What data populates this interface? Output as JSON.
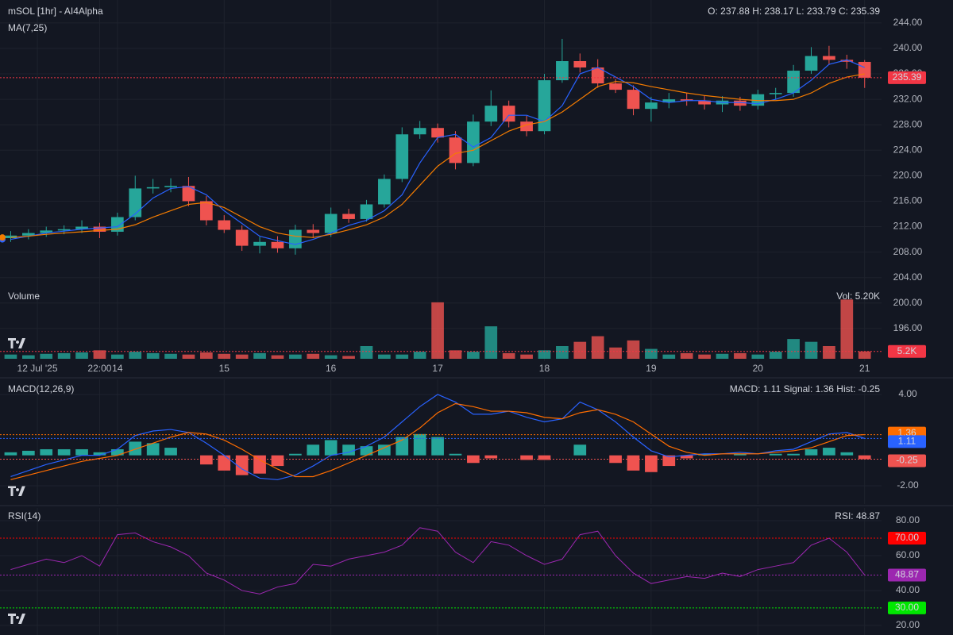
{
  "chart_data": [
    {
      "type": "candlestick",
      "title": "mSOL [1hr] - AI4Alpha",
      "subtitle": "MA(7,25)",
      "readout": "O: 237.88 H: 238.17 L: 233.79 C: 235.39",
      "x": [
        24,
        28,
        32,
        36,
        40,
        44,
        48,
        52,
        56,
        60,
        64,
        68,
        72,
        76,
        80,
        84,
        88,
        92,
        96,
        100,
        104,
        108,
        112,
        116,
        120,
        124,
        128,
        132,
        136,
        140,
        144,
        148,
        152,
        156,
        160,
        164,
        168,
        172,
        176,
        180,
        184,
        188,
        192,
        196,
        200,
        204,
        208,
        212,
        216
      ],
      "xlim": [
        21.6,
        219.8
      ],
      "xticks": [
        {
          "value": 30,
          "label": "12 Jul '25"
        },
        {
          "value": 44,
          "label": "22:00"
        },
        {
          "value": 48,
          "label": "14"
        },
        {
          "value": 72,
          "label": "15"
        },
        {
          "value": 96,
          "label": "16"
        },
        {
          "value": 120,
          "label": "17"
        },
        {
          "value": 144,
          "label": "18"
        },
        {
          "value": 168,
          "label": "19"
        },
        {
          "value": 192,
          "label": "20"
        },
        {
          "value": 216,
          "label": "21"
        }
      ],
      "ylim": [
        190.5,
        247.6
      ],
      "yticks": [
        {
          "value": 196,
          "label": "196.00"
        },
        {
          "value": 200,
          "label": "200.00"
        },
        {
          "value": 204,
          "label": "204.00"
        },
        {
          "value": 208,
          "label": "208.00"
        },
        {
          "value": 212,
          "label": "212.00"
        },
        {
          "value": 216,
          "label": "216.00"
        },
        {
          "value": 220,
          "label": "220.00"
        },
        {
          "value": 224,
          "label": "224.00"
        },
        {
          "value": 228,
          "label": "228.00"
        },
        {
          "value": 232,
          "label": "232.00"
        },
        {
          "value": 236,
          "label": "236.00"
        },
        {
          "value": 240,
          "label": "240.00"
        },
        {
          "value": 244,
          "label": "244.00"
        }
      ],
      "grid": true,
      "up_color": "#26a69a",
      "down_color": "#ef5350",
      "last_color": "#f23645",
      "open": [
        210.2,
        210.6,
        211.0,
        211.4,
        211.6,
        212.0,
        211.2,
        213.5,
        218.0,
        218.2,
        218.4,
        216.0,
        213.0,
        211.5,
        209.0,
        209.6,
        208.6,
        211.5,
        211.0,
        214.0,
        213.2,
        215.5,
        219.5,
        226.5,
        227.5,
        226.0,
        222.0,
        228.5,
        231.0,
        228.5,
        227.0,
        235.0,
        238.0,
        237.0,
        234.5,
        233.5,
        230.5,
        231.5,
        232.0,
        231.8,
        231.2,
        231.8,
        231.0,
        232.8,
        233.0,
        236.5,
        238.8,
        238.2,
        237.88
      ],
      "high": [
        211.3,
        211.6,
        212.0,
        212.2,
        213.0,
        212.6,
        214.2,
        220.0,
        219.5,
        219.6,
        219.8,
        216.8,
        213.8,
        212.2,
        210.4,
        210.5,
        212.3,
        212.4,
        215.0,
        214.8,
        216.2,
        220.2,
        227.6,
        228.6,
        228.2,
        227.0,
        229.6,
        233.4,
        231.8,
        229.4,
        236.0,
        241.5,
        239.2,
        238.3,
        235.2,
        234.2,
        232.4,
        233.0,
        233.0,
        232.6,
        232.5,
        232.4,
        233.5,
        233.8,
        237.4,
        240.2,
        240.4,
        239.0,
        238.17
      ],
      "low": [
        209.6,
        210.0,
        210.4,
        210.8,
        211.0,
        210.2,
        210.6,
        213.0,
        217.2,
        217.4,
        215.2,
        212.2,
        211.0,
        208.2,
        207.8,
        207.9,
        207.6,
        210.2,
        210.4,
        212.6,
        212.8,
        215.0,
        219.0,
        225.8,
        225.2,
        221.0,
        221.5,
        227.8,
        227.6,
        226.2,
        226.5,
        234.6,
        236.2,
        233.8,
        233.0,
        229.5,
        228.5,
        230.6,
        231.0,
        230.4,
        230.0,
        230.2,
        230.4,
        232.0,
        232.4,
        236.0,
        237.4,
        236.8,
        233.79
      ],
      "close": [
        210.6,
        211.0,
        211.4,
        211.6,
        212.0,
        211.2,
        213.5,
        218.0,
        218.2,
        218.4,
        216.0,
        213.0,
        211.5,
        209.0,
        209.6,
        208.6,
        211.5,
        211.0,
        214.0,
        213.2,
        215.5,
        219.5,
        226.5,
        227.5,
        226.0,
        222.0,
        228.5,
        231.0,
        228.5,
        227.0,
        235.0,
        238.0,
        237.0,
        234.5,
        233.5,
        230.5,
        231.5,
        232.0,
        231.8,
        231.2,
        231.8,
        231.0,
        232.8,
        233.0,
        236.5,
        238.8,
        238.2,
        237.9,
        235.39
      ],
      "ma": [
        {
          "color": "#2962ff",
          "values": [
            210.0,
            210.5,
            211.0,
            211.3,
            211.6,
            211.8,
            212.0,
            214.0,
            216.5,
            218.0,
            218.3,
            217.0,
            214.5,
            212.5,
            210.5,
            209.8,
            209.2,
            210.0,
            211.0,
            212.2,
            213.0,
            214.5,
            217.0,
            222.0,
            226.0,
            226.5,
            224.5,
            226.0,
            229.5,
            229.5,
            228.5,
            231.0,
            236.0,
            237.0,
            235.5,
            234.0,
            232.0,
            231.5,
            231.8,
            231.8,
            231.5,
            231.5,
            231.3,
            232.0,
            233.0,
            235.0,
            237.5,
            238.2,
            237.0
          ]
        },
        {
          "color": "#f57c00",
          "values": [
            210.3,
            210.5,
            210.8,
            211.0,
            211.2,
            211.4,
            211.6,
            212.3,
            213.5,
            214.5,
            215.5,
            215.8,
            215.0,
            213.5,
            212.0,
            211.0,
            210.5,
            210.3,
            210.8,
            211.5,
            212.3,
            213.5,
            215.5,
            218.5,
            221.5,
            223.5,
            224.0,
            225.5,
            227.0,
            228.0,
            228.5,
            230.0,
            232.0,
            234.0,
            234.8,
            234.6,
            234.0,
            233.5,
            233.0,
            232.6,
            232.3,
            232.0,
            231.8,
            231.8,
            232.0,
            233.0,
            234.5,
            235.5,
            236.0
          ]
        }
      ],
      "volume": {
        "title": "Volume",
        "readout": "Vol: 5.20K",
        "ylim": [
          0,
          45000
        ],
        "last_label": "5.2K",
        "values": [
          3000,
          2500,
          3500,
          4000,
          4500,
          6000,
          3000,
          5000,
          4000,
          3500,
          3000,
          4500,
          3500,
          3000,
          4000,
          2500,
          3000,
          3500,
          2500,
          2000,
          9000,
          3000,
          3000,
          5000,
          40000,
          6000,
          5000,
          23000,
          4000,
          3000,
          6000,
          9000,
          12000,
          16000,
          8000,
          13000,
          7000,
          3000,
          4000,
          3000,
          3500,
          4000,
          3000,
          5000,
          14000,
          12000,
          9000,
          42000,
          5200
        ]
      }
    },
    {
      "type": "macd",
      "title": "MACD(12,26,9)",
      "readout": "MACD: 1.11 Signal: 1.36 Hist: -0.25",
      "ylim": [
        -3.2,
        4.99
      ],
      "yticks": [
        {
          "value": -2,
          "label": "-2.00"
        },
        {
          "value": 4,
          "label": "4.00"
        }
      ],
      "macd": {
        "color": "#2962ff",
        "values": [
          -1.4,
          -1.0,
          -0.6,
          -0.3,
          0.0,
          0.0,
          0.4,
          1.3,
          1.6,
          1.7,
          1.5,
          0.8,
          0.0,
          -0.9,
          -1.5,
          -1.6,
          -1.3,
          -0.7,
          0.0,
          0.2,
          0.6,
          1.2,
          2.2,
          3.2,
          4.0,
          3.5,
          2.7,
          2.7,
          2.9,
          2.5,
          2.2,
          2.4,
          3.5,
          3.0,
          2.2,
          1.2,
          0.3,
          -0.1,
          0.0,
          0.1,
          0.1,
          0.2,
          0.1,
          0.3,
          0.4,
          0.9,
          1.4,
          1.5,
          1.11
        ]
      },
      "signal": {
        "color": "#ff6d00",
        "values": [
          -1.6,
          -1.3,
          -1.0,
          -0.7,
          -0.4,
          -0.2,
          0.0,
          0.4,
          0.8,
          1.2,
          1.5,
          1.4,
          1.0,
          0.4,
          -0.3,
          -0.9,
          -1.4,
          -1.4,
          -1.0,
          -0.5,
          0.0,
          0.5,
          1.0,
          1.8,
          2.8,
          3.4,
          3.2,
          2.9,
          2.9,
          2.8,
          2.5,
          2.4,
          2.8,
          3.0,
          2.7,
          2.2,
          1.4,
          0.6,
          0.2,
          0.0,
          0.1,
          0.1,
          0.1,
          0.2,
          0.3,
          0.5,
          0.9,
          1.3,
          1.36
        ]
      },
      "hist": {
        "up_color": "#26a69a",
        "down_color": "#ef5350",
        "values": [
          0.2,
          0.3,
          0.4,
          0.4,
          0.4,
          0.2,
          0.4,
          0.9,
          0.8,
          0.5,
          0.0,
          -0.6,
          -1.0,
          -1.3,
          -1.2,
          -0.7,
          0.1,
          0.7,
          1.0,
          0.7,
          0.6,
          0.7,
          1.2,
          1.4,
          1.2,
          0.1,
          -0.5,
          -0.2,
          0.0,
          -0.3,
          -0.3,
          0.0,
          0.7,
          0.0,
          -0.5,
          -1.0,
          -1.1,
          -0.7,
          -0.2,
          0.1,
          0.0,
          0.1,
          0.0,
          0.1,
          0.1,
          0.4,
          0.5,
          0.2,
          -0.25
        ]
      }
    },
    {
      "type": "rsi",
      "title": "RSI(14)",
      "readout": "RSI: 48.87",
      "color": "#9c27b0",
      "ylim": [
        14.5,
        87.3
      ],
      "yticks": [
        {
          "value": 20,
          "label": "20.00"
        },
        {
          "value": 40,
          "label": "40.00"
        },
        {
          "value": 60,
          "label": "60.00"
        },
        {
          "value": 80,
          "label": "80.00"
        }
      ],
      "levels": [
        {
          "value": 70,
          "label": "70.00",
          "color": "#ff0000"
        },
        {
          "value": 30,
          "label": "30.00",
          "color": "#00e600"
        }
      ],
      "values": [
        52,
        55,
        58,
        56,
        60,
        54,
        72,
        73,
        68,
        65,
        60,
        50,
        46,
        40,
        38,
        42,
        44,
        55,
        54,
        58,
        60,
        62,
        66,
        76,
        74,
        62,
        56,
        68,
        66,
        60,
        55,
        58,
        72,
        74,
        60,
        50,
        44,
        46,
        48,
        47,
        50,
        48,
        52,
        54,
        56,
        66,
        70,
        62,
        48.87
      ]
    }
  ]
}
